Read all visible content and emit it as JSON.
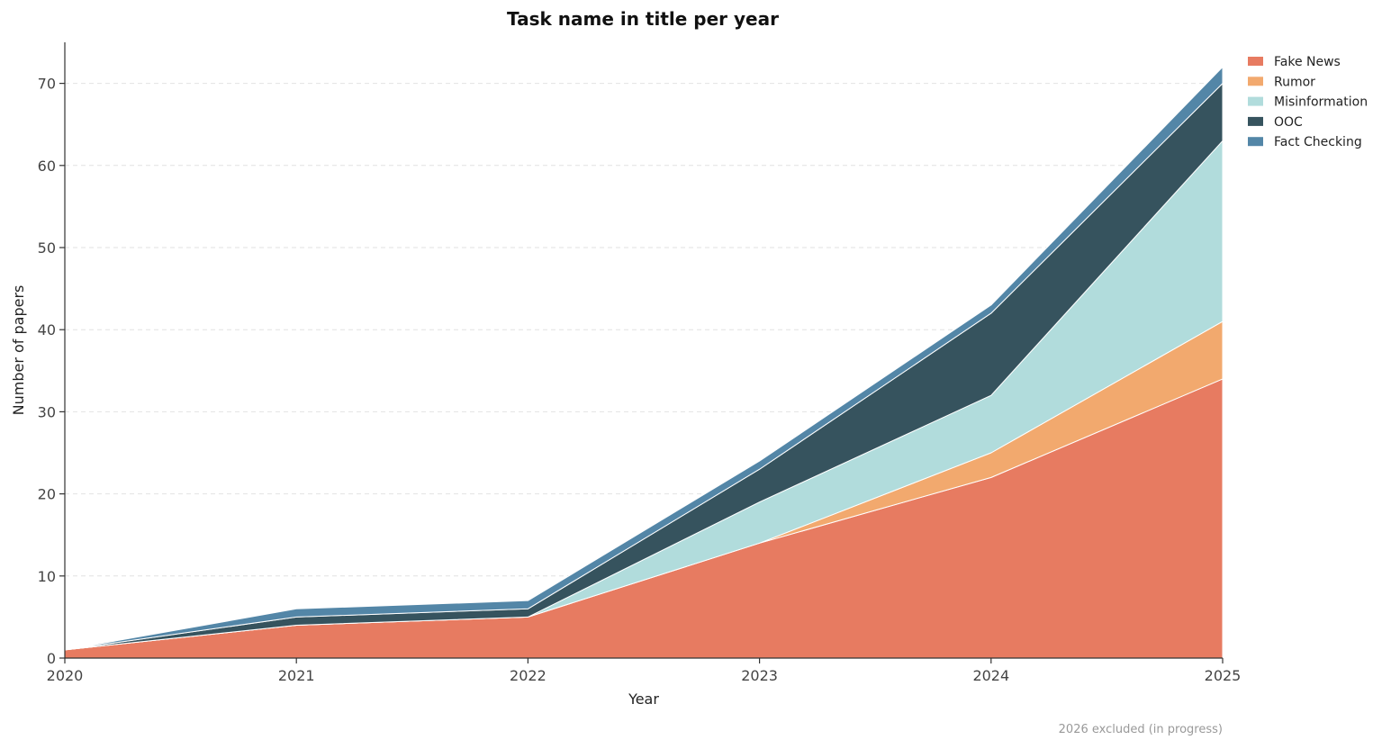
{
  "chart_data": {
    "type": "area",
    "stacked": true,
    "title": "Task name in title per year",
    "xlabel": "Year",
    "ylabel": "Number of papers",
    "x": [
      2020,
      2021,
      2022,
      2023,
      2024,
      2025
    ],
    "xlim": [
      2020,
      2025
    ],
    "ylim": [
      0,
      75
    ],
    "yticks": [
      0,
      10,
      20,
      30,
      40,
      50,
      60,
      70
    ],
    "grid": "y-dashed",
    "legend_position": "top-right",
    "series": [
      {
        "name": "Fake News",
        "color": "#e77b61",
        "values": [
          1,
          4,
          5,
          14,
          22,
          34
        ]
      },
      {
        "name": "Rumor",
        "color": "#f2a96e",
        "values": [
          0,
          0,
          0,
          0,
          3,
          7
        ]
      },
      {
        "name": "Misinformation",
        "color": "#b1dcdc",
        "values": [
          0,
          0,
          0,
          5,
          7,
          22
        ]
      },
      {
        "name": "OOC",
        "color": "#36535e",
        "values": [
          0,
          1,
          1,
          4,
          10,
          7
        ]
      },
      {
        "name": "Fact Checking",
        "color": "#5386a7",
        "values": [
          0,
          1,
          1,
          1,
          1,
          2
        ]
      }
    ],
    "note": "2026 excluded (in progress)"
  }
}
